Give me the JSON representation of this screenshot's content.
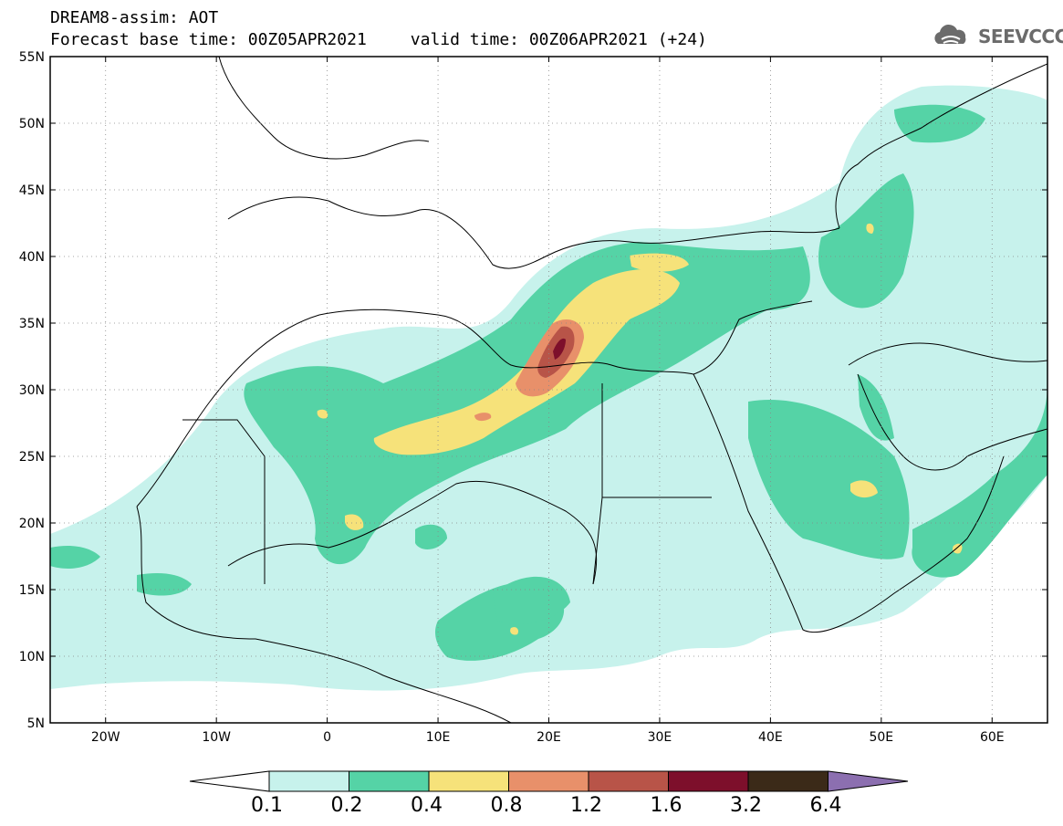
{
  "header": {
    "line1": "DREAM8-assim: AOT",
    "base_time": "Forecast base time: 00Z05APR2021",
    "valid_time": "valid time: 00Z06APR2021 (+24)",
    "logo_text": "SEEVCCC"
  },
  "map": {
    "lon_range": [
      -25,
      65
    ],
    "lat_range": [
      5,
      55
    ],
    "lat_ticks": [
      "55N",
      "50N",
      "45N",
      "40N",
      "35N",
      "30N",
      "25N",
      "20N",
      "15N",
      "10N",
      "5N"
    ],
    "lon_ticks": [
      "20W",
      "10W",
      "0",
      "10E",
      "20E",
      "30E",
      "40E",
      "50E",
      "60E"
    ],
    "grid": "dotted"
  },
  "colorbar": {
    "levels": [
      "0.1",
      "0.2",
      "0.4",
      "0.8",
      "1.2",
      "1.6",
      "3.2",
      "6.4"
    ],
    "colors": [
      "#c7f2ec",
      "#55d3a6",
      "#f6e27a",
      "#e8906a",
      "#b85448",
      "#7d0f2b",
      "#3b2a18",
      "#8c6fb0"
    ]
  }
}
